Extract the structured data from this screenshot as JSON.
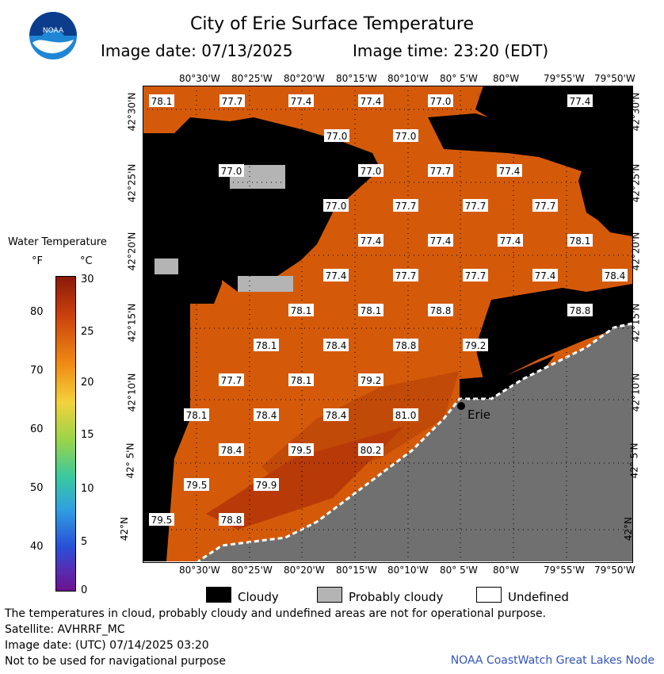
{
  "header": {
    "title": "City of Erie Surface Temperature",
    "date_text": "Image date: 07/13/2025",
    "time_text": "Image time: 23:20 (EDT)",
    "logo_text": "NOAA"
  },
  "colorbar": {
    "title": "Water Temperature",
    "unit_f": "°F",
    "unit_c": "°C",
    "f_ticks": [
      "80",
      "70",
      "60",
      "50",
      "40"
    ],
    "c_ticks": [
      "30",
      "25",
      "20",
      "15",
      "10",
      "5",
      "0"
    ]
  },
  "axes": {
    "lon_labels": [
      "80°30'W",
      "80°25'W",
      "80°20'W",
      "80°15'W",
      "80°10'W",
      "80° 5'W",
      "80°W",
      "79°55'W",
      "79°50'W"
    ],
    "lat_labels": [
      "42°30'N",
      "42°25'N",
      "42°20'N",
      "42°15'N",
      "42°10'N",
      "42° 5'N",
      "42°N"
    ]
  },
  "map": {
    "city": "Erie",
    "colors": {
      "water_warm": "#d45a0a",
      "water_hot": "#b83a08",
      "cloud": "#000000",
      "probably_cloudy": "#b4b4b4",
      "land": "#707070"
    },
    "temperatures": [
      "78.1",
      "77.7",
      "77.4",
      "77.4",
      "77.0",
      "77.4",
      "77.0",
      "77.0",
      "77.0",
      "77.0",
      "77.7",
      "77.4",
      "77.0",
      "77.7",
      "77.7",
      "77.7",
      "77.4",
      "77.4",
      "77.4",
      "78.1",
      "77.4",
      "77.7",
      "77.7",
      "77.4",
      "78.4",
      "78.1",
      "78.1",
      "78.8",
      "78.8",
      "78.1",
      "78.4",
      "78.8",
      "79.2",
      "77.7",
      "78.1",
      "79.2",
      "78.1",
      "78.4",
      "78.4",
      "81.0",
      "78.4",
      "79.5",
      "80.2",
      "79.5",
      "79.9",
      "79.5",
      "78.8"
    ]
  },
  "legend": {
    "cloudy": "Cloudy",
    "probably_cloudy": "Probably cloudy",
    "undefined": "Undefined"
  },
  "footer": {
    "note1": "The temperatures in cloud, probably cloudy and undefined areas are not for operational purpose.",
    "satellite": "Satellite: AVHRRF_MC",
    "utc_date": "Image date: (UTC) 07/14/2025  03:20",
    "nav_note": "Not to be used for navigational purpose",
    "credit": "NOAA CoastWatch Great Lakes Node"
  }
}
